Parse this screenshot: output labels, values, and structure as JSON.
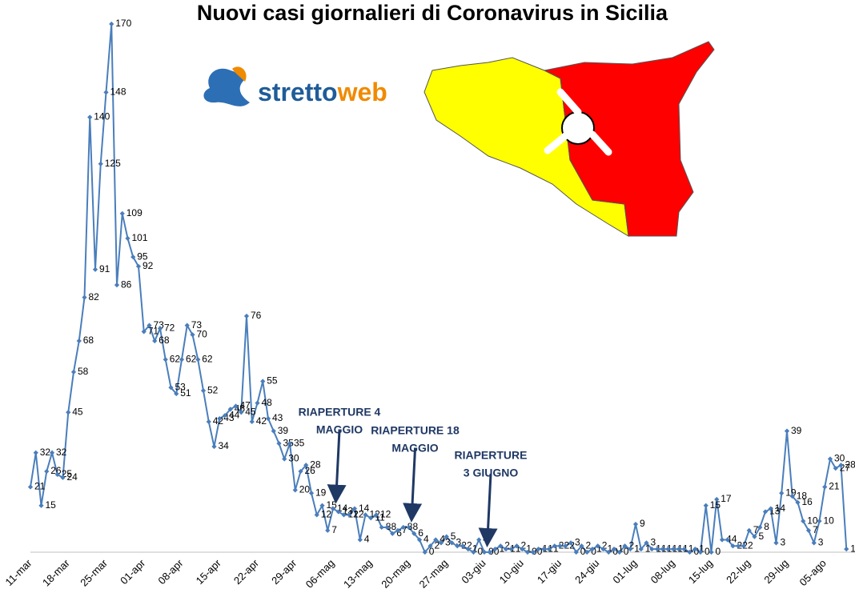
{
  "chart_data": {
    "type": "line",
    "title": "Nuovi casi giornalieri di Coronavirus in Sicilia",
    "logo": [
      "stretto",
      "web"
    ],
    "categories": [
      "11-mar",
      null,
      null,
      null,
      null,
      null,
      null,
      "18-mar",
      null,
      null,
      null,
      null,
      null,
      null,
      "25-mar",
      null,
      null,
      null,
      null,
      null,
      null,
      "01-apr",
      null,
      null,
      null,
      null,
      null,
      null,
      "08-apr",
      null,
      null,
      null,
      null,
      null,
      null,
      "15-apr",
      null,
      null,
      null,
      null,
      null,
      null,
      "22-apr",
      null,
      null,
      null,
      null,
      null,
      null,
      "29-apr",
      null,
      null,
      null,
      null,
      null,
      null,
      "06-mag",
      null,
      null,
      null,
      null,
      null,
      null,
      "13-mag",
      null,
      null,
      null,
      null,
      null,
      null,
      "20-mag",
      null,
      null,
      null,
      null,
      null,
      null,
      "27-mag",
      null,
      null,
      null,
      null,
      null,
      null,
      "03-giu",
      null,
      null,
      null,
      null,
      null,
      null,
      "10-giu",
      null,
      null,
      null,
      null,
      null,
      null,
      "17-giu",
      null,
      null,
      null,
      null,
      null,
      null,
      "24-giu",
      null,
      null,
      null,
      null,
      null,
      null,
      "01-lug",
      null,
      null,
      null,
      null,
      null,
      null,
      "08-lug",
      null,
      null,
      null,
      null,
      null,
      null,
      "15-lug",
      null,
      null,
      null,
      null,
      null,
      null,
      "22-lug",
      null,
      null,
      null,
      null,
      null,
      null,
      "29-lug",
      null,
      null,
      null,
      null,
      null,
      null,
      "05-ago",
      null,
      null,
      null,
      null
    ],
    "series": [
      {
        "name": "Nuovi casi",
        "color": "#4a7ebb",
        "values": [
          21,
          32,
          15,
          26,
          32,
          25,
          24,
          45,
          58,
          68,
          82,
          140,
          91,
          125,
          148,
          170,
          86,
          109,
          101,
          95,
          92,
          71,
          73,
          68,
          72,
          62,
          53,
          51,
          62,
          73,
          70,
          62,
          52,
          42,
          34,
          43,
          44,
          46,
          47,
          45,
          76,
          42,
          48,
          55,
          43,
          39,
          35,
          30,
          35,
          20,
          26,
          28,
          19,
          12,
          15,
          7,
          14,
          13,
          12,
          12,
          14,
          4,
          12,
          11,
          12,
          8,
          8,
          6,
          7,
          8,
          8,
          6,
          4,
          0,
          2,
          4,
          3,
          5,
          3,
          2,
          2,
          1,
          0,
          4,
          0,
          0,
          1,
          2,
          1,
          1,
          2,
          1,
          0,
          0,
          1,
          1,
          1,
          2,
          2,
          2,
          3,
          0,
          2,
          0,
          1,
          2,
          1,
          0,
          1,
          0,
          2,
          1,
          9,
          1,
          3,
          1,
          1,
          1,
          1,
          1,
          1,
          1,
          0,
          1,
          0,
          15,
          0,
          17,
          4,
          4,
          2,
          2,
          2,
          7,
          5,
          8,
          13,
          14,
          3,
          19,
          39,
          18,
          16,
          10,
          7,
          3,
          10,
          21,
          30,
          27,
          28,
          1
        ]
      }
    ],
    "ylim": [
      0,
      175
    ],
    "annotations": [
      {
        "index": 56,
        "lines": [
          "RIAPERTURE 4",
          "MAGGIO"
        ]
      },
      {
        "index": 70,
        "lines": [
          "RIAPERTURE 18",
          "MAGGIO"
        ]
      },
      {
        "index": 84,
        "lines": [
          "RIAPERTURE",
          "3 GIUGNO"
        ]
      }
    ]
  }
}
